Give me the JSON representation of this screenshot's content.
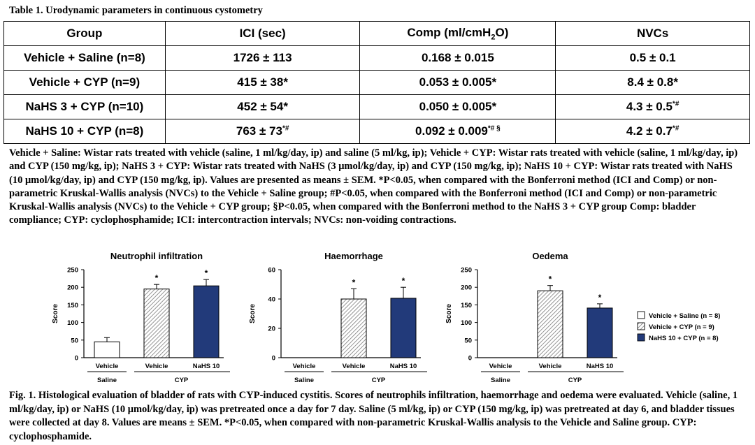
{
  "table": {
    "title": "Table 1. Urodynamic parameters in continuous cystometry",
    "headers": [
      "Group",
      "ICI (sec)",
      "Comp (ml/cmH",
      "2",
      "O)",
      "NVCs"
    ],
    "rows": [
      {
        "group": "Vehicle + Saline (n=8)",
        "ici": "1726 ± 113",
        "ici_sup": "",
        "comp": "0.168 ± 0.015",
        "comp_sup": "",
        "nvc": "0.5 ± 0.1",
        "nvc_sup": ""
      },
      {
        "group": "Vehicle + CYP (n=9)",
        "ici": "415 ± 38*",
        "ici_sup": "",
        "comp": "0.053 ± 0.005*",
        "comp_sup": "",
        "nvc": "8.4 ± 0.8*",
        "nvc_sup": ""
      },
      {
        "group": "NaHS 3 + CYP (n=10)",
        "ici": "452 ± 54*",
        "ici_sup": "",
        "comp": "0.050 ± 0.005*",
        "comp_sup": "",
        "nvc": "4.3 ± 0.5",
        "nvc_sup": "*#"
      },
      {
        "group": "NaHS 10 + CYP (n=8)",
        "ici": "763 ± 73",
        "ici_sup": "*#",
        "comp": "0.092 ± 0.009",
        "comp_sup": "*# §",
        "nvc": "4.2 ± 0.7",
        "nvc_sup": "*#"
      }
    ],
    "footnote": "Vehicle + Saline: Wistar rats treated with vehicle (saline, 1 ml/kg/day, ip) and saline (5 ml/kg, ip); Vehicle + CYP: Wistar rats treated with vehicle (saline, 1 ml/kg/day, ip) and CYP (150 mg/kg, ip); NaHS 3 + CYP: Wistar rats treated with NaHS (3 μmol/kg/day, ip) and CYP (150 mg/kg, ip); NaHS 10 + CYP: Wistar rats treated with NaHS (10 μmol/kg/day, ip) and CYP (150 mg/kg, ip). Values are presented as means ± SEM. *P<0.05, when compared with the Bonferroni method (ICI and Comp) or non-parametric Kruskal-Wallis analysis (NVCs) to the Vehicle + Saline group; #P<0.05, when compared with the Bonferroni method (ICI and Comp) or non-parametric Kruskal-Wallis analysis (NVCs) to the Vehicle + CYP group; §P<0.05, when compared with the Bonferroni method to the NaHS 3 + CYP group Comp: bladder compliance; CYP: cyclophosphamide; ICI: intercontraction intervals; NVCs: non-voiding contractions."
  },
  "chart_data": [
    {
      "type": "bar",
      "title": "Neutrophil infiltration",
      "ylabel": "Score",
      "ylim": [
        0,
        250
      ],
      "yticks": [
        0,
        50,
        100,
        150,
        200,
        250
      ],
      "categories": [
        "Vehicle",
        "Vehicle",
        "NaHS 10"
      ],
      "group_labels": [
        "Saline",
        "CYP"
      ],
      "values": [
        45,
        195,
        204
      ],
      "errors": [
        12,
        13,
        18
      ],
      "significance": [
        "",
        "*",
        "*"
      ]
    },
    {
      "type": "bar",
      "title": "Haemorrhage",
      "ylabel": "Score",
      "ylim": [
        0,
        60
      ],
      "yticks": [
        0,
        20,
        40,
        60
      ],
      "categories": [
        "Vehicle",
        "Vehicle",
        "NaHS 10"
      ],
      "group_labels": [
        "Saline",
        "CYP"
      ],
      "values": [
        0,
        40,
        40.5
      ],
      "errors": [
        0,
        7,
        7.5
      ],
      "significance": [
        "",
        "*",
        "*"
      ]
    },
    {
      "type": "bar",
      "title": "Oedema",
      "ylabel": "Score",
      "ylim": [
        0,
        250
      ],
      "yticks": [
        0,
        50,
        100,
        150,
        200,
        250
      ],
      "categories": [
        "Vehicle",
        "Vehicle",
        "NaHS 10"
      ],
      "group_labels": [
        "Saline",
        "CYP"
      ],
      "values": [
        0,
        190,
        141
      ],
      "errors": [
        0,
        15,
        12
      ],
      "significance": [
        "",
        "*",
        "*"
      ]
    }
  ],
  "legend": [
    {
      "label": "Vehicle + Saline (n = 8)",
      "style": "white"
    },
    {
      "label": "Vehicle + CYP (n = 9)",
      "style": "hatch"
    },
    {
      "label": "NaHS 10 + CYP (n = 8)",
      "style": "navy"
    }
  ],
  "colors": {
    "navy": "#223a7a",
    "hatch_bg": "#ffffff",
    "hatch_line": "#777777"
  },
  "figure": {
    "caption": "Fig. 1. Histological evaluation of bladder of rats with CYP-induced cystitis. Scores of neutrophils infiltration, haemorrhage and oedema were evaluated. Vehicle (saline, 1 ml/kg/day, ip) or NaHS (10 μmol/kg/day, ip) was pretreated once a day for 7 day. Saline (5 ml/kg, ip) or CYP (150 mg/kg, ip) was pretreated at day 6, and bladder tissues were collected at day 8. Values are means ± SEM. *P<0.05, when compared with non-parametric Kruskal-Wallis analysis to the Vehicle and Saline group. CYP: cyclophosphamide."
  }
}
